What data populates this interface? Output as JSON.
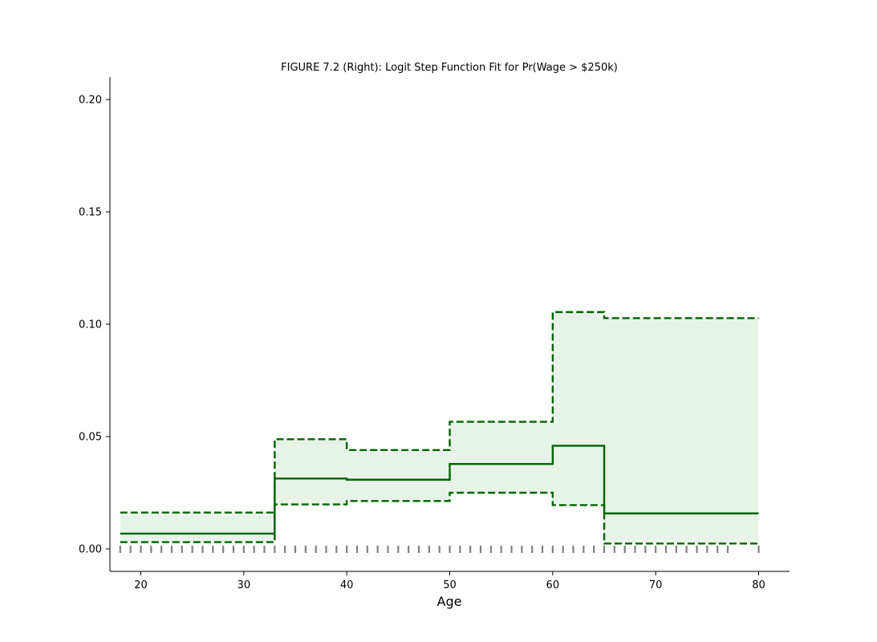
{
  "chart_data": {
    "type": "line",
    "title": "FIGURE 7.2 (Right): Logit Step Function Fit for Pr(Wage > $250k)",
    "xlabel": "Age",
    "ylabel": "",
    "xlim": [
      17,
      83
    ],
    "ylim": [
      -0.01,
      0.21
    ],
    "xticks": [
      20,
      30,
      40,
      50,
      60,
      70,
      80
    ],
    "yticks": [
      0.0,
      0.05,
      0.1,
      0.15,
      0.2
    ],
    "ytick_labels": [
      "0.00",
      "0.05",
      "0.10",
      "0.15",
      "0.20"
    ],
    "grid": false,
    "colors": {
      "fit": "#006400",
      "band": "#e8f3e8",
      "rug": "#808080"
    },
    "series": [
      {
        "role": "fit",
        "style": "solid",
        "x": [
          18,
          33,
          33,
          40,
          40,
          50,
          50,
          60,
          60,
          65,
          65,
          80
        ],
        "y": [
          0.0068,
          0.0068,
          0.0313,
          0.0313,
          0.0308,
          0.0308,
          0.0378,
          0.0378,
          0.0459,
          0.0459,
          0.0158,
          0.0158
        ]
      },
      {
        "role": "upper",
        "style": "dashed",
        "x": [
          18,
          33,
          33,
          40,
          40,
          50,
          50,
          60,
          60,
          65,
          65,
          80
        ],
        "y": [
          0.0162,
          0.0162,
          0.0488,
          0.0488,
          0.044,
          0.044,
          0.0566,
          0.0566,
          0.1054,
          0.1054,
          0.1027,
          0.1027
        ]
      },
      {
        "role": "lower",
        "style": "dashed",
        "x": [
          18,
          33,
          33,
          40,
          40,
          50,
          50,
          60,
          60,
          65,
          65,
          80
        ],
        "y": [
          0.003,
          0.003,
          0.0198,
          0.0198,
          0.0213,
          0.0213,
          0.025,
          0.025,
          0.0195,
          0.0195,
          0.0024,
          0.0024
        ]
      }
    ],
    "rug_x": [
      18,
      19,
      20,
      21,
      22,
      23,
      24,
      25,
      26,
      27,
      28,
      29,
      30,
      31,
      32,
      33,
      34,
      35,
      36,
      37,
      38,
      39,
      40,
      41,
      42,
      43,
      44,
      45,
      46,
      47,
      48,
      49,
      50,
      51,
      52,
      53,
      54,
      55,
      56,
      57,
      58,
      59,
      60,
      61,
      62,
      63,
      64,
      65,
      66,
      67,
      68,
      69,
      70,
      71,
      72,
      73,
      74,
      75,
      76,
      77,
      80
    ]
  }
}
